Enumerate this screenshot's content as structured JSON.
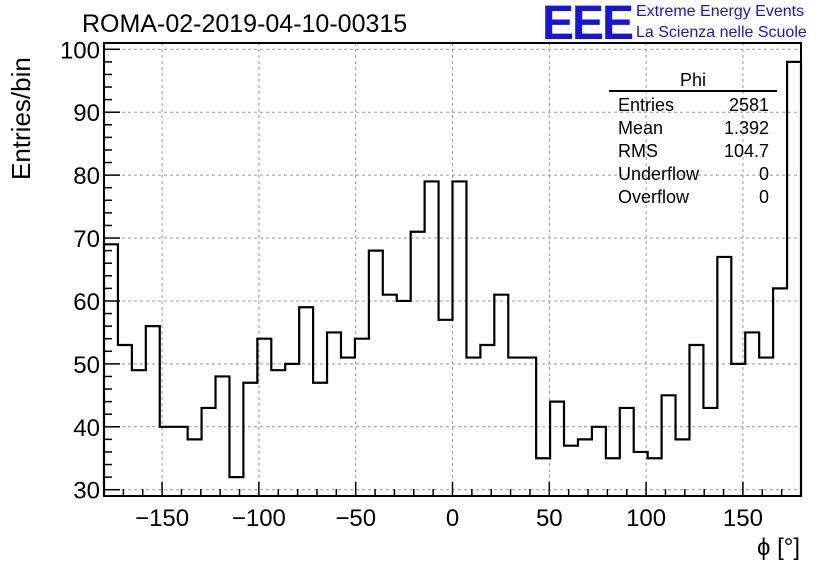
{
  "title": "ROMA-02-2019-04-10-00315",
  "logo": {
    "mark": "EEE",
    "line1": "Extreme Energy Events",
    "line2": "La Scienza nelle Scuole",
    "color": "#1414e6"
  },
  "stats_box": {
    "title": "Phi",
    "rows": [
      {
        "label": "Entries",
        "value": "2581"
      },
      {
        "label": "Mean",
        "value": "1.392"
      },
      {
        "label": "RMS",
        "value": "104.7"
      },
      {
        "label": "Underflow",
        "value": "0"
      },
      {
        "label": "Overflow",
        "value": "0"
      }
    ]
  },
  "chart_data": {
    "type": "histogram",
    "title": "ROMA-02-2019-04-10-00315",
    "xlabel": "ϕ [°]",
    "ylabel": "Entries/bin",
    "xlim": [
      -180,
      180
    ],
    "ylim": [
      29,
      101
    ],
    "bin_width": 7.2,
    "x_ticks": [
      -150,
      -100,
      -50,
      0,
      50,
      100,
      150
    ],
    "y_ticks": [
      30,
      40,
      50,
      60,
      70,
      80,
      90,
      100
    ],
    "grid": true,
    "legend": "top-right",
    "values": [
      69,
      53,
      49,
      56,
      40,
      40,
      38,
      43,
      48,
      32,
      47,
      54,
      49,
      50,
      59,
      47,
      55,
      51,
      54,
      68,
      61,
      60,
      71,
      79,
      57,
      79,
      51,
      53,
      61,
      51,
      51,
      35,
      44,
      37,
      38,
      40,
      35,
      43,
      36,
      35,
      45,
      38,
      53,
      43,
      67,
      50,
      55,
      51,
      62,
      98
    ]
  }
}
